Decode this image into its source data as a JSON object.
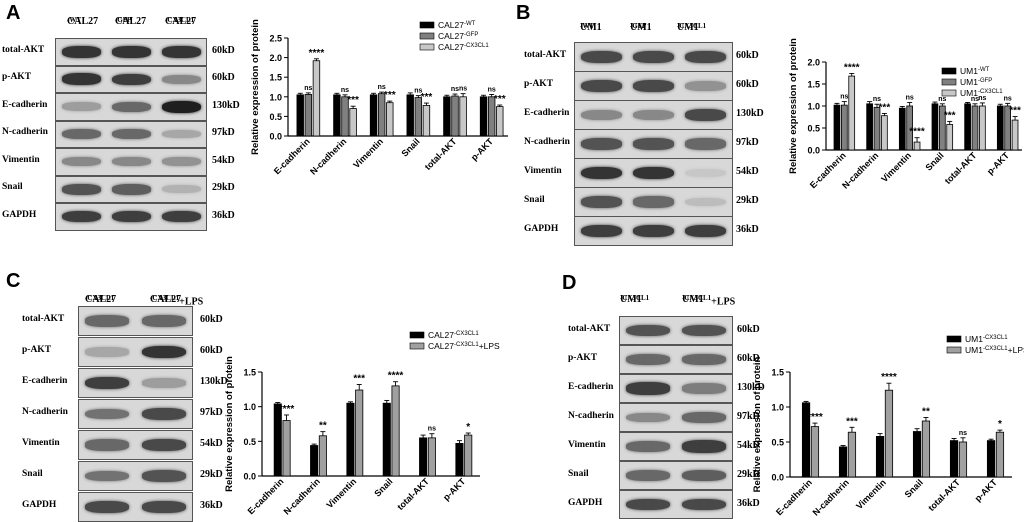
{
  "panels": [
    {
      "label": "A",
      "lanes": [
        {
          "base": "CAL27",
          "sup": "-WT"
        },
        {
          "base": "CAL27",
          "sup": "-GFP"
        },
        {
          "base": "CAL27",
          "sup": "-CX3CL1"
        }
      ],
      "rows": [
        {
          "name": "total-AKT",
          "kd": "60kD",
          "intensity": [
            0.85,
            0.85,
            0.85
          ]
        },
        {
          "name": "p-AKT",
          "kd": "60kD",
          "intensity": [
            0.85,
            0.8,
            0.45
          ]
        },
        {
          "name": "E-cadherin",
          "kd": "130kD",
          "intensity": [
            0.35,
            0.6,
            0.95
          ]
        },
        {
          "name": "N-cadherin",
          "kd": "97kD",
          "intensity": [
            0.6,
            0.6,
            0.3
          ]
        },
        {
          "name": "Vimentin",
          "kd": "54kD",
          "intensity": [
            0.45,
            0.45,
            0.4
          ]
        },
        {
          "name": "Snail",
          "kd": "29kD",
          "intensity": [
            0.7,
            0.65,
            0.25
          ]
        },
        {
          "name": "GAPDH",
          "kd": "36kD",
          "intensity": [
            0.8,
            0.8,
            0.8
          ]
        }
      ]
    },
    {
      "label": "B",
      "lanes": [
        {
          "base": "UM1",
          "sup": "-WT"
        },
        {
          "base": "UM1",
          "sup": "-GFP"
        },
        {
          "base": "UM1",
          "sup": "-CX3CL1"
        }
      ],
      "rows": [
        {
          "name": "total-AKT",
          "kd": "60kD",
          "intensity": [
            0.75,
            0.75,
            0.75
          ]
        },
        {
          "name": "p-AKT",
          "kd": "60kD",
          "intensity": [
            0.75,
            0.75,
            0.4
          ]
        },
        {
          "name": "E-cadherin",
          "kd": "130kD",
          "intensity": [
            0.45,
            0.45,
            0.75
          ]
        },
        {
          "name": "N-cadherin",
          "kd": "97kD",
          "intensity": [
            0.7,
            0.7,
            0.6
          ]
        },
        {
          "name": "Vimentin",
          "kd": "54kD",
          "intensity": [
            0.85,
            0.85,
            0.15
          ]
        },
        {
          "name": "Snail",
          "kd": "29kD",
          "intensity": [
            0.7,
            0.6,
            0.2
          ]
        },
        {
          "name": "GAPDH",
          "kd": "36kD",
          "intensity": [
            0.8,
            0.8,
            0.8
          ]
        }
      ]
    },
    {
      "label": "C",
      "lanes": [
        {
          "base": "CAL27",
          "sup": "-CX3CL1"
        },
        {
          "base": "CAL27",
          "sup": "-CX3CL1",
          "suffix": "+LPS"
        }
      ],
      "rows": [
        {
          "name": "total-AKT",
          "kd": "60kD",
          "intensity": [
            0.6,
            0.6
          ]
        },
        {
          "name": "p-AKT",
          "kd": "60kD",
          "intensity": [
            0.3,
            0.85
          ]
        },
        {
          "name": "E-cadherin",
          "kd": "130kD",
          "intensity": [
            0.8,
            0.35
          ]
        },
        {
          "name": "N-cadherin",
          "kd": "97kD",
          "intensity": [
            0.55,
            0.75
          ]
        },
        {
          "name": "Vimentin",
          "kd": "54kD",
          "intensity": [
            0.6,
            0.75
          ]
        },
        {
          "name": "Snail",
          "kd": "29kD",
          "intensity": [
            0.55,
            0.7
          ]
        },
        {
          "name": "GAPDH",
          "kd": "36kD",
          "intensity": [
            0.75,
            0.75
          ]
        }
      ]
    },
    {
      "label": "D",
      "lanes": [
        {
          "base": "UM1",
          "sup": "-CX3CL1"
        },
        {
          "base": "UM1",
          "sup": "-CX3CL1",
          "suffix": "+LPS"
        }
      ],
      "rows": [
        {
          "name": "total-AKT",
          "kd": "60kD",
          "intensity": [
            0.7,
            0.7
          ]
        },
        {
          "name": "p-AKT",
          "kd": "60kD",
          "intensity": [
            0.6,
            0.6
          ]
        },
        {
          "name": "E-cadherin",
          "kd": "130kD",
          "intensity": [
            0.8,
            0.5
          ]
        },
        {
          "name": "N-cadherin",
          "kd": "97kD",
          "intensity": [
            0.45,
            0.6
          ]
        },
        {
          "name": "Vimentin",
          "kd": "54kD",
          "intensity": [
            0.6,
            0.8
          ]
        },
        {
          "name": "Snail",
          "kd": "29kD",
          "intensity": [
            0.6,
            0.65
          ]
        },
        {
          "name": "GAPDH",
          "kd": "36kD",
          "intensity": [
            0.75,
            0.75
          ]
        }
      ]
    }
  ],
  "chart_data": [
    {
      "type": "bar",
      "panel": "A",
      "ylabel": "Relative expression of protein",
      "ylim": [
        0,
        2.5
      ],
      "yticks": [
        "0.0",
        "0.5",
        "1.0",
        "1.5",
        "2.0",
        "2.5"
      ],
      "categories": [
        "E-cadherin",
        "N-cadherin",
        "Vimentin",
        "Snail",
        "total-AKT",
        "p-AKT"
      ],
      "legend_position": "top-right",
      "series": [
        {
          "name": "CAL27",
          "sup": "-WT",
          "color": "#000000",
          "values": [
            1.05,
            1.05,
            1.05,
            1.05,
            1.0,
            1.0
          ],
          "errors": [
            0.04,
            0.04,
            0.04,
            0.05,
            0.04,
            0.04
          ]
        },
        {
          "name": "CAL27",
          "sup": "-GFP",
          "color": "#808080",
          "values": [
            1.06,
            1.0,
            1.08,
            0.98,
            1.02,
            1.0
          ],
          "errors": [
            0.04,
            0.05,
            0.04,
            0.05,
            0.05,
            0.06
          ]
        },
        {
          "name": "CAL27",
          "sup": "-CX3CL1",
          "color": "#c8c8c8",
          "values": [
            1.92,
            0.7,
            0.85,
            0.78,
            1.0,
            0.75
          ],
          "errors": [
            0.05,
            0.06,
            0.04,
            0.06,
            0.08,
            0.04
          ]
        }
      ],
      "significance": [
        [
          "ns",
          "****"
        ],
        [
          "ns",
          "***"
        ],
        [
          "ns",
          "***"
        ],
        [
          "ns",
          "***"
        ],
        [
          "ns",
          "ns"
        ],
        [
          "ns",
          "***"
        ]
      ]
    },
    {
      "type": "bar",
      "panel": "B",
      "ylabel": "Relative expression of protein",
      "ylim": [
        0,
        2.0
      ],
      "yticks": [
        "0.0",
        "0.5",
        "1.0",
        "1.5",
        "2.0"
      ],
      "categories": [
        "E-cadherin",
        "N-cadherin",
        "Vimentin",
        "Snail",
        "total-AKT",
        "p-AKT"
      ],
      "legend_position": "top-right",
      "series": [
        {
          "name": "UM1",
          "sup": "-WT",
          "color": "#000000",
          "values": [
            1.02,
            1.05,
            0.95,
            1.05,
            1.05,
            1.0
          ],
          "errors": [
            0.04,
            0.05,
            0.04,
            0.04,
            0.03,
            0.04
          ]
        },
        {
          "name": "UM1",
          "sup": "-GFP",
          "color": "#808080",
          "values": [
            1.02,
            0.97,
            1.0,
            1.0,
            1.0,
            1.0
          ],
          "errors": [
            0.08,
            0.07,
            0.08,
            0.05,
            0.05,
            0.06
          ]
        },
        {
          "name": "UM1",
          "sup": "-CX3CL1",
          "color": "#c8c8c8",
          "values": [
            1.68,
            0.78,
            0.18,
            0.58,
            1.0,
            0.68
          ],
          "errors": [
            0.06,
            0.05,
            0.1,
            0.07,
            0.07,
            0.08
          ]
        }
      ],
      "significance": [
        [
          "ns",
          "****"
        ],
        [
          "ns",
          "***"
        ],
        [
          "ns",
          "****"
        ],
        [
          "ns",
          "***"
        ],
        [
          "ns",
          "ns"
        ],
        [
          "ns",
          "***"
        ]
      ]
    },
    {
      "type": "bar",
      "panel": "C",
      "ylabel": "Relative expression of protein",
      "ylim": [
        0,
        1.5
      ],
      "yticks": [
        "0.0",
        "0.5",
        "1.0",
        "1.5"
      ],
      "categories": [
        "E-cadherin",
        "N-cadherin",
        "Vimentin",
        "Snail",
        "total-AKT",
        "p-AKT"
      ],
      "legend_position": "top-right",
      "series": [
        {
          "name": "CAL27",
          "sup": "-CX3CL1",
          "color": "#000000",
          "values": [
            1.04,
            0.44,
            1.05,
            1.05,
            0.55,
            0.47
          ],
          "errors": [
            0.02,
            0.02,
            0.02,
            0.04,
            0.04,
            0.04
          ]
        },
        {
          "name": "CAL27",
          "sup": "-CX3CL1",
          "suffix": "+LPS",
          "color": "#a0a0a0",
          "values": [
            0.8,
            0.58,
            1.24,
            1.3,
            0.55,
            0.59
          ],
          "errors": [
            0.08,
            0.06,
            0.08,
            0.06,
            0.06,
            0.03
          ]
        }
      ],
      "significance": [
        "****",
        "**",
        "***",
        "****",
        "ns",
        "*"
      ]
    },
    {
      "type": "bar",
      "panel": "D",
      "ylabel": "Relative expression of protein",
      "ylim": [
        0,
        1.5
      ],
      "yticks": [
        "0.0",
        "0.5",
        "1.0",
        "1.5"
      ],
      "categories": [
        "E-cadherin",
        "N-cadherin",
        "Vimentin",
        "Snail",
        "total-AKT",
        "p-AKT"
      ],
      "legend_position": "top-right",
      "series": [
        {
          "name": "UM1",
          "sup": "-CX3CL1",
          "color": "#000000",
          "values": [
            1.06,
            0.43,
            0.58,
            0.65,
            0.52,
            0.52
          ],
          "errors": [
            0.02,
            0.02,
            0.04,
            0.04,
            0.03,
            0.02
          ]
        },
        {
          "name": "UM1",
          "sup": "-CX3CL1",
          "suffix": "+LPS",
          "color": "#a0a0a0",
          "values": [
            0.72,
            0.64,
            1.24,
            0.8,
            0.5,
            0.64
          ],
          "errors": [
            0.05,
            0.07,
            0.1,
            0.05,
            0.06,
            0.03
          ]
        }
      ],
      "significance": [
        "****",
        "***",
        "****",
        "**",
        "ns",
        "*"
      ]
    }
  ]
}
